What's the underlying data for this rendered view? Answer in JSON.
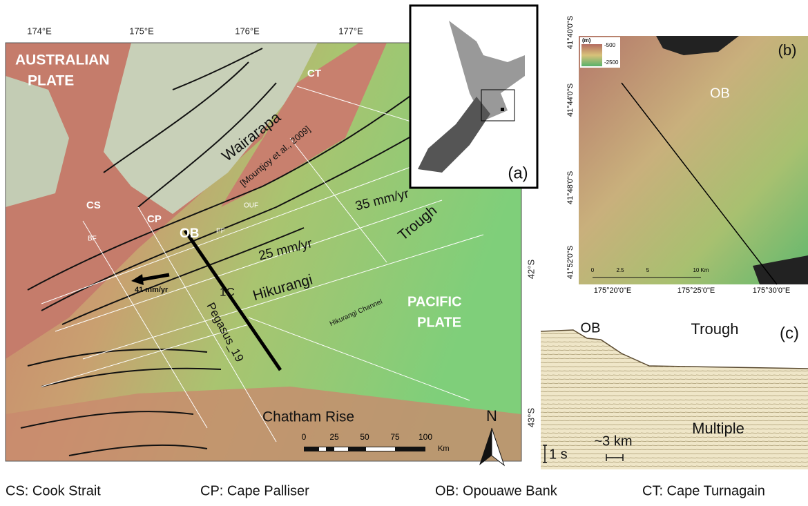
{
  "map": {
    "lon_labels": [
      "174°E",
      "175°E",
      "176°E",
      "177°E"
    ],
    "lat_labels": [
      "42°S",
      "43°S"
    ],
    "labels": {
      "australian_plate": [
        "AUSTRALIAN",
        "PLATE"
      ],
      "pacific_plate": [
        "PACIFIC",
        "PLATE"
      ],
      "ct": "CT",
      "cs": "CS",
      "cp": "CP",
      "ob": "OB",
      "bf": "BF",
      "pf": "PF",
      "ouf": "OUF",
      "wairarapa": "Wairarapa",
      "citation": "[Mountjoy et al., 2009]",
      "rate_35": "35 mm/yr",
      "rate_25": "25 mm/yr",
      "rate_41": "41 mm/yr",
      "trough": "Trough",
      "one_c": "1C",
      "hikurangi": "Hikurangi",
      "pegasus": "Pegasus_19",
      "channel": "Hikurangi Channel",
      "chatham": "Chatham Rise",
      "north": "N"
    },
    "scale": {
      "ticks": [
        "0",
        "25",
        "50",
        "75",
        "100"
      ],
      "unit": "Km"
    }
  },
  "inset_a": {
    "label": "(a)"
  },
  "panel_b": {
    "label": "(b)",
    "ob": "OB",
    "lat_labels": [
      "41°40'0\"S",
      "41°44'0\"S",
      "41°48'0\"S",
      "41°52'0\"S"
    ],
    "lon_labels": [
      "175°20'0\"E",
      "175°25'0\"E",
      "175°30'0\"E"
    ],
    "legend": {
      "unit": "(m)",
      "high": "-500",
      "low": "-2500"
    },
    "scale": {
      "ticks": [
        "0",
        "2.5",
        "5",
        "10 Km"
      ]
    }
  },
  "panel_c": {
    "label": "(c)",
    "ob": "OB",
    "trough": "Trough",
    "multiple": "Multiple",
    "horizontal_scale": "~3 km",
    "vertical_scale": "1 s"
  },
  "abbreviations": [
    "CS: Cook Strait",
    "CP: Cape Palliser",
    "OB: Opouawe Bank",
    "CT: Cape Turnagain"
  ]
}
